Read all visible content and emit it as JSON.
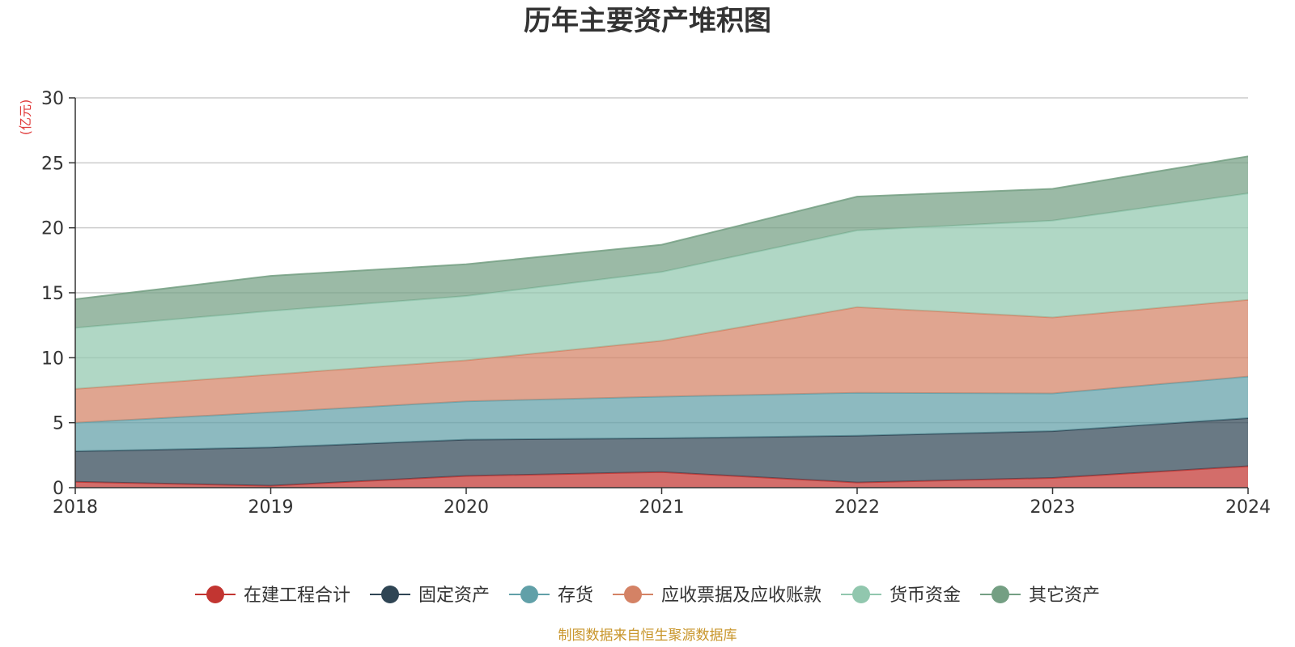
{
  "chart_data": {
    "type": "area",
    "stacked": true,
    "title": "历年主要资产堆积图",
    "unit_label": "(亿元)",
    "x": [
      "2018",
      "2019",
      "2020",
      "2021",
      "2022",
      "2023",
      "2024"
    ],
    "ylim": [
      0,
      30
    ],
    "yticks": [
      "0",
      "5",
      "10",
      "15",
      "20",
      "25",
      "30"
    ],
    "grid": true,
    "legend_position": "bottom",
    "series": [
      {
        "name": "在建工程合计",
        "color": "#c23531",
        "values": [
          0.45,
          0.15,
          0.9,
          1.2,
          0.4,
          0.75,
          1.65
        ]
      },
      {
        "name": "固定资产",
        "color": "#2f4554",
        "values": [
          2.35,
          2.95,
          2.8,
          2.6,
          3.6,
          3.6,
          3.7
        ]
      },
      {
        "name": "存货",
        "color": "#61a0a8",
        "values": [
          2.2,
          2.7,
          2.95,
          3.2,
          3.3,
          2.9,
          3.2
        ]
      },
      {
        "name": "应收票据及应收账款",
        "color": "#d48265",
        "values": [
          2.6,
          2.9,
          3.15,
          4.3,
          6.6,
          5.85,
          5.9
        ]
      },
      {
        "name": "货币资金",
        "color": "#91c7ae",
        "values": [
          4.7,
          4.9,
          4.95,
          5.3,
          5.9,
          7.45,
          8.2
        ]
      },
      {
        "name": "其它资产",
        "color": "#749f83",
        "values": [
          2.2,
          2.7,
          2.45,
          2.1,
          2.6,
          2.45,
          2.85
        ]
      }
    ],
    "source": "制图数据来自恒生聚源数据库"
  },
  "colors": {
    "title": "#333333",
    "unit": "#e03c3c",
    "source": "#c8952a",
    "grid": "#cccccc",
    "axis": "#333333"
  }
}
